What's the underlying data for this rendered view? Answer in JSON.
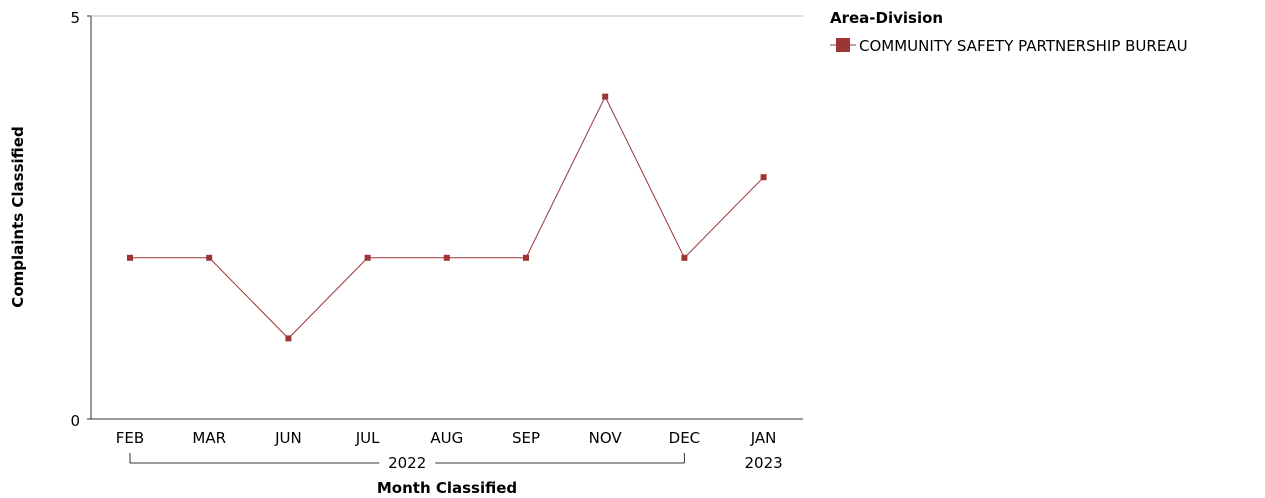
{
  "chart_data": {
    "type": "line",
    "categories": [
      "FEB",
      "MAR",
      "JUN",
      "JUL",
      "AUG",
      "SEP",
      "NOV",
      "DEC",
      "JAN"
    ],
    "year_groups": [
      {
        "label": "2022",
        "from": 0,
        "to": 7
      },
      {
        "label": "2023",
        "from": 8,
        "to": 8
      }
    ],
    "series": [
      {
        "name": "COMMUNITY SAFETY PARTNERSHIP BUREAU",
        "values": [
          2,
          2,
          1,
          2,
          2,
          2,
          4,
          2,
          3
        ],
        "color": "#9e3535"
      }
    ],
    "ylim": [
      0,
      5
    ],
    "yticks": [
      "0",
      "5"
    ],
    "xlabel": "Month Classified",
    "ylabel": "Complaints Classified",
    "legend": {
      "title": "Area-Division",
      "position": "top-right"
    },
    "grid": false
  }
}
